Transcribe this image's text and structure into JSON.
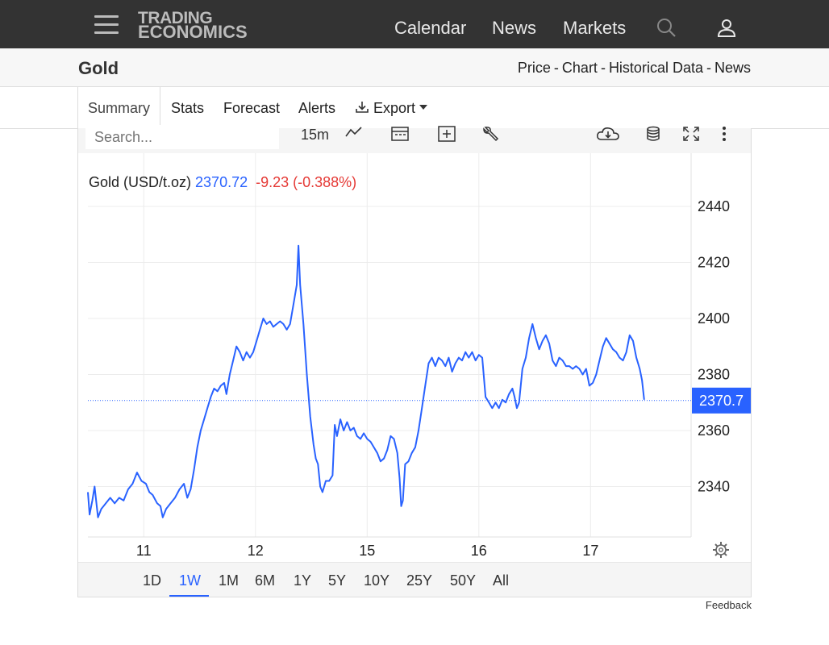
{
  "navbar": {
    "logo_line1": "TRADING",
    "logo_line2": "ECONOMICS",
    "links": [
      "Calendar",
      "News",
      "Markets"
    ],
    "icons": [
      "hamburger-icon",
      "search-icon",
      "user-icon"
    ]
  },
  "subheader": {
    "title": "Gold",
    "links": [
      "Price",
      "Chart",
      "Historical Data",
      "News"
    ],
    "separator": "-"
  },
  "tabs": {
    "items": [
      "Summary",
      "Stats",
      "Forecast",
      "Alerts",
      "Export"
    ],
    "active": "Summary"
  },
  "toolbar": {
    "search_placeholder": "Search...",
    "interval": "15m",
    "icons": [
      "line-chart-icon",
      "calendar-icon",
      "add-box-icon",
      "wrench-icon",
      "cloud-download-icon",
      "database-icon",
      "fullscreen-icon",
      "more-vertical-icon"
    ]
  },
  "chart_data": {
    "type": "line",
    "legend": {
      "name": "Gold (USD/t.oz)",
      "price": "2370.72",
      "change": "-9.23 (-0.388%)"
    },
    "last_price_label": "2370.7",
    "last_price": 2370.7,
    "y_ticks": [
      2340,
      2360,
      2380,
      2400,
      2420,
      2440
    ],
    "y_tick_labels": [
      "2340",
      "2360",
      "2380",
      "2400",
      "2420",
      "2440"
    ],
    "ylim": [
      2322,
      2459
    ],
    "x_ticks": [
      "11",
      "12",
      "15",
      "16",
      "17"
    ],
    "xlim": [
      0,
      54
    ],
    "x_tick_positions": [
      5,
      15,
      25,
      35,
      45
    ],
    "grid": true,
    "line_color": "#2962ff",
    "down_color": "#e53935",
    "points": [
      [
        0.0,
        2338
      ],
      [
        0.15,
        2330
      ],
      [
        0.4,
        2335
      ],
      [
        0.6,
        2340
      ],
      [
        0.9,
        2329
      ],
      [
        1.2,
        2332
      ],
      [
        1.6,
        2334
      ],
      [
        2.0,
        2336
      ],
      [
        2.4,
        2334
      ],
      [
        2.8,
        2336
      ],
      [
        3.2,
        2335
      ],
      [
        3.6,
        2339
      ],
      [
        4.0,
        2341
      ],
      [
        4.4,
        2345
      ],
      [
        4.8,
        2342
      ],
      [
        5.2,
        2341
      ],
      [
        5.5,
        2338
      ],
      [
        5.8,
        2337
      ],
      [
        6.2,
        2334
      ],
      [
        6.5,
        2333
      ],
      [
        6.7,
        2329
      ],
      [
        7.0,
        2332
      ],
      [
        7.4,
        2334
      ],
      [
        7.8,
        2336
      ],
      [
        8.2,
        2339
      ],
      [
        8.6,
        2341
      ],
      [
        8.9,
        2336
      ],
      [
        9.2,
        2339
      ],
      [
        9.5,
        2346
      ],
      [
        9.8,
        2354
      ],
      [
        10.1,
        2360
      ],
      [
        10.4,
        2364
      ],
      [
        10.7,
        2368
      ],
      [
        11.0,
        2372
      ],
      [
        11.3,
        2375
      ],
      [
        11.6,
        2374
      ],
      [
        11.9,
        2376
      ],
      [
        12.2,
        2377
      ],
      [
        12.4,
        2373
      ],
      [
        12.7,
        2380
      ],
      [
        13.0,
        2385
      ],
      [
        13.3,
        2390
      ],
      [
        13.6,
        2388
      ],
      [
        13.9,
        2385
      ],
      [
        14.2,
        2388
      ],
      [
        14.5,
        2386
      ],
      [
        14.8,
        2388
      ],
      [
        15.1,
        2392
      ],
      [
        15.4,
        2396
      ],
      [
        15.7,
        2400
      ],
      [
        16.0,
        2398
      ],
      [
        16.3,
        2399
      ],
      [
        16.6,
        2397
      ],
      [
        16.9,
        2398
      ],
      [
        17.2,
        2399
      ],
      [
        17.5,
        2398
      ],
      [
        17.8,
        2396
      ],
      [
        18.1,
        2398
      ],
      [
        18.4,
        2405
      ],
      [
        18.7,
        2412
      ],
      [
        18.85,
        2426
      ],
      [
        19.0,
        2412
      ],
      [
        19.3,
        2398
      ],
      [
        19.6,
        2380
      ],
      [
        19.9,
        2365
      ],
      [
        20.2,
        2355
      ],
      [
        20.4,
        2350
      ],
      [
        20.6,
        2348
      ],
      [
        20.8,
        2340
      ],
      [
        21.0,
        2338
      ],
      [
        21.3,
        2342
      ],
      [
        21.6,
        2342
      ],
      [
        21.9,
        2344
      ],
      [
        22.1,
        2362
      ],
      [
        22.3,
        2358
      ],
      [
        22.6,
        2364
      ],
      [
        22.9,
        2360
      ],
      [
        23.2,
        2363
      ],
      [
        23.5,
        2360
      ],
      [
        23.8,
        2361
      ],
      [
        24.1,
        2358
      ],
      [
        24.4,
        2357
      ],
      [
        24.7,
        2359
      ],
      [
        25.0,
        2357
      ],
      [
        25.3,
        2356
      ],
      [
        25.6,
        2354
      ],
      [
        25.9,
        2352
      ],
      [
        26.2,
        2349
      ],
      [
        26.5,
        2350
      ],
      [
        26.8,
        2353
      ],
      [
        27.1,
        2358
      ],
      [
        27.4,
        2357
      ],
      [
        27.7,
        2352
      ],
      [
        27.9,
        2343
      ],
      [
        28.05,
        2333
      ],
      [
        28.2,
        2335
      ],
      [
        28.4,
        2348
      ],
      [
        28.7,
        2349
      ],
      [
        29.0,
        2352
      ],
      [
        29.3,
        2354
      ],
      [
        29.6,
        2360
      ],
      [
        29.9,
        2368
      ],
      [
        30.2,
        2376
      ],
      [
        30.5,
        2384
      ],
      [
        30.8,
        2386
      ],
      [
        31.1,
        2383
      ],
      [
        31.4,
        2386
      ],
      [
        31.7,
        2385
      ],
      [
        32.0,
        2383
      ],
      [
        32.3,
        2386
      ],
      [
        32.6,
        2381
      ],
      [
        32.9,
        2384
      ],
      [
        33.2,
        2386
      ],
      [
        33.5,
        2385
      ],
      [
        33.8,
        2388
      ],
      [
        34.1,
        2386
      ],
      [
        34.4,
        2388
      ],
      [
        34.7,
        2385
      ],
      [
        35.0,
        2387
      ],
      [
        35.3,
        2386
      ],
      [
        35.6,
        2372
      ],
      [
        35.9,
        2370
      ],
      [
        36.2,
        2368
      ],
      [
        36.5,
        2370
      ],
      [
        36.8,
        2368
      ],
      [
        37.1,
        2371
      ],
      [
        37.4,
        2370
      ],
      [
        37.7,
        2373
      ],
      [
        38.0,
        2375
      ],
      [
        38.2,
        2372
      ],
      [
        38.4,
        2368
      ],
      [
        38.6,
        2370
      ],
      [
        38.9,
        2382
      ],
      [
        39.2,
        2386
      ],
      [
        39.5,
        2393
      ],
      [
        39.8,
        2398
      ],
      [
        40.1,
        2393
      ],
      [
        40.4,
        2389
      ],
      [
        40.7,
        2392
      ],
      [
        41.0,
        2394
      ],
      [
        41.3,
        2391
      ],
      [
        41.6,
        2385
      ],
      [
        41.9,
        2383
      ],
      [
        42.2,
        2386
      ],
      [
        42.5,
        2385
      ],
      [
        42.8,
        2383
      ],
      [
        43.1,
        2383
      ],
      [
        43.4,
        2382
      ],
      [
        43.7,
        2383
      ],
      [
        44.0,
        2382
      ],
      [
        44.3,
        2380
      ],
      [
        44.6,
        2382
      ],
      [
        44.9,
        2376
      ],
      [
        45.2,
        2377
      ],
      [
        45.5,
        2380
      ],
      [
        45.8,
        2385
      ],
      [
        46.1,
        2390
      ],
      [
        46.4,
        2393
      ],
      [
        46.7,
        2391
      ],
      [
        47.0,
        2389
      ],
      [
        47.3,
        2388
      ],
      [
        47.6,
        2386
      ],
      [
        47.9,
        2385
      ],
      [
        48.2,
        2388
      ],
      [
        48.5,
        2394
      ],
      [
        48.8,
        2392
      ],
      [
        49.1,
        2386
      ],
      [
        49.4,
        2382
      ],
      [
        49.6,
        2378
      ],
      [
        49.8,
        2371
      ]
    ]
  },
  "ranges": {
    "items": [
      "1D",
      "1W",
      "1M",
      "6M",
      "1Y",
      "5Y",
      "10Y",
      "25Y",
      "50Y",
      "All"
    ],
    "active": "1W"
  },
  "footer": {
    "feedback": "Feedback"
  }
}
